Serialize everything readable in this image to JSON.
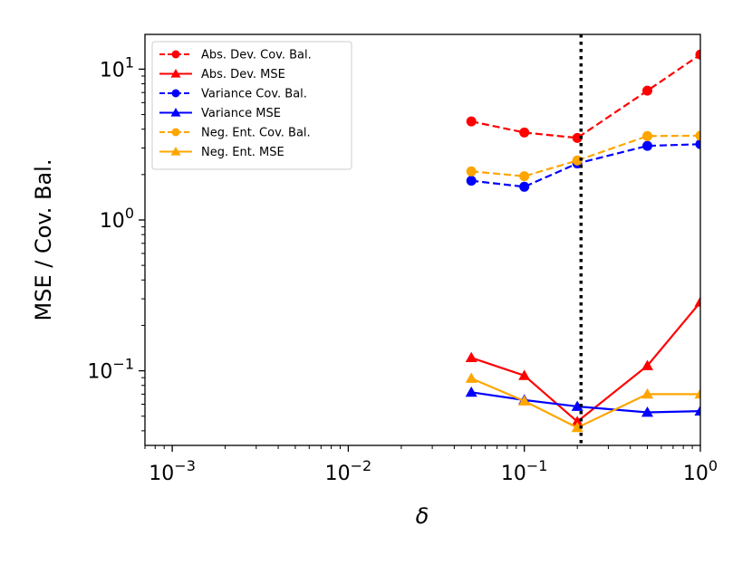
{
  "chart_data": {
    "type": "line",
    "xscale": "log",
    "yscale": "log",
    "xlabel": "δ",
    "ylabel": "MSE / Cov. Bal.",
    "xlim": [
      0.0007,
      1.0
    ],
    "ylim": [
      0.032,
      17
    ],
    "x_ticks": [
      {
        "value": 0.001,
        "base": "10",
        "exp": "−3"
      },
      {
        "value": 0.01,
        "base": "10",
        "exp": "−2"
      },
      {
        "value": 0.1,
        "base": "10",
        "exp": "−1"
      },
      {
        "value": 1,
        "base": "10",
        "exp": "0"
      }
    ],
    "y_ticks": [
      {
        "value": 0.1,
        "base": "10",
        "exp": "−1"
      },
      {
        "value": 1,
        "base": "10",
        "exp": "0"
      },
      {
        "value": 10,
        "base": "10",
        "exp": "1"
      }
    ],
    "vline": {
      "x": 0.21,
      "style": "dotted",
      "color": "#000000"
    },
    "legend_position": "top-left",
    "x": [
      0.05,
      0.1,
      0.2,
      0.5,
      1.0
    ],
    "series": [
      {
        "name": "Abs. Dev. Cov. Bal.",
        "color": "#ff0000",
        "dash": "dashed",
        "marker": "circle",
        "values": [
          4.5,
          3.8,
          3.5,
          7.2,
          12.5
        ]
      },
      {
        "name": "Abs. Dev. MSE",
        "color": "#ff0000",
        "dash": "solid",
        "marker": "triangle",
        "values": [
          0.122,
          0.093,
          0.046,
          0.108,
          0.285
        ]
      },
      {
        "name": "Variance Cov. Bal.",
        "color": "#0000ff",
        "dash": "dashed",
        "marker": "circle",
        "values": [
          1.82,
          1.66,
          2.37,
          3.1,
          3.18
        ]
      },
      {
        "name": "Variance MSE",
        "color": "#0000ff",
        "dash": "solid",
        "marker": "triangle",
        "values": [
          0.072,
          0.064,
          0.058,
          0.053,
          0.054
        ]
      },
      {
        "name": "Neg. Ent. Cov. Bal.",
        "color": "#ffa500",
        "dash": "dashed",
        "marker": "circle",
        "values": [
          2.1,
          1.95,
          2.48,
          3.6,
          3.62
        ]
      },
      {
        "name": "Neg. Ent. MSE",
        "color": "#ffa500",
        "dash": "solid",
        "marker": "triangle",
        "values": [
          0.089,
          0.063,
          0.042,
          0.07,
          0.07
        ]
      }
    ]
  }
}
